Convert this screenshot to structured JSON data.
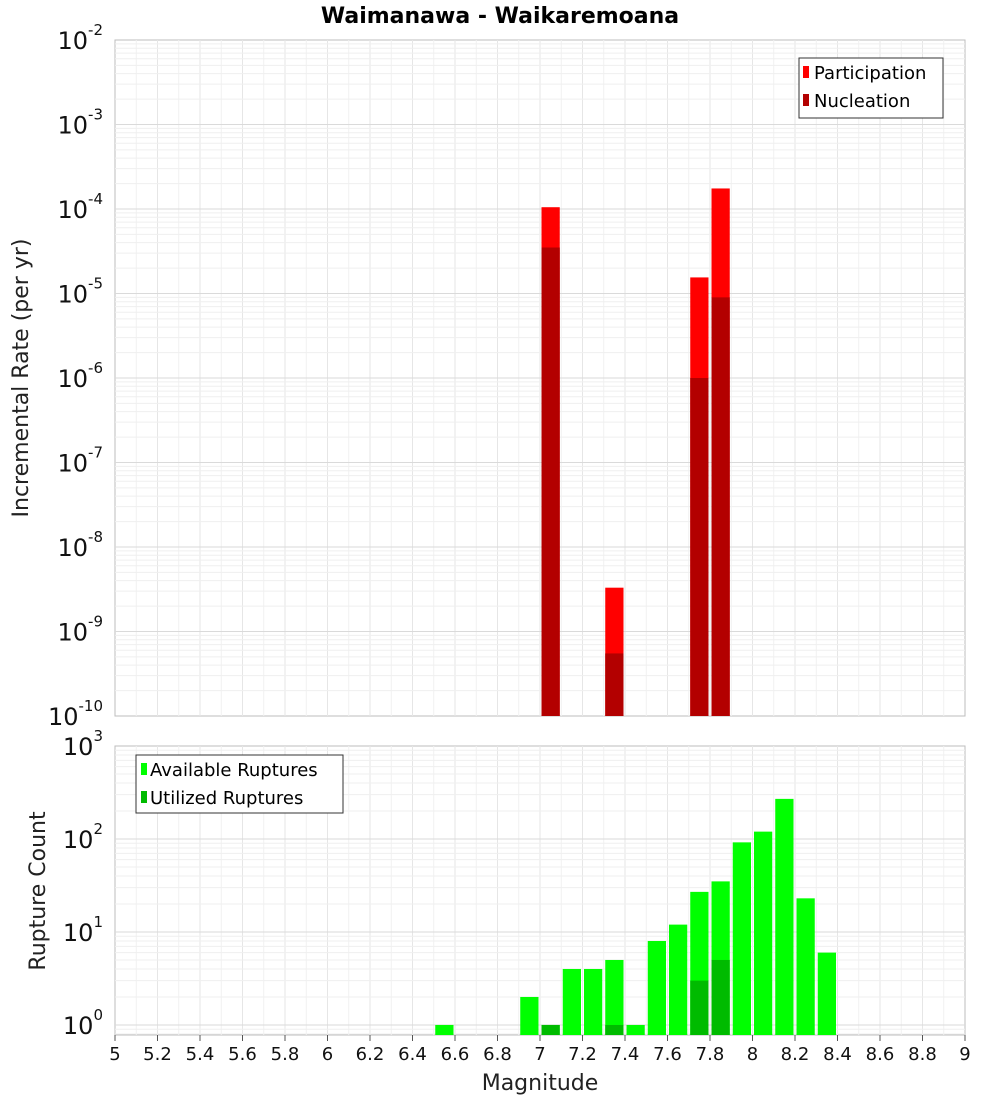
{
  "chart_data": [
    {
      "type": "bar",
      "title": "Waimanawa - Waikaremoana",
      "ylabel": "Incremental Rate (per yr)",
      "xlabel": "",
      "xlim": [
        5,
        9
      ],
      "ylim": [
        1e-10,
        0.01
      ],
      "yscale": "log",
      "yticks_base": "10",
      "yticks_exp": [
        "-10",
        "-9",
        "-8",
        "-7",
        "-6",
        "-5",
        "-4",
        "-3",
        "-2"
      ],
      "grid": true,
      "legend_position": "top-right",
      "bin_width": 0.1,
      "series": [
        {
          "name": "Participation",
          "color": "#ff0000",
          "x": [
            7.05,
            7.35,
            7.75,
            7.85
          ],
          "values": [
            0.000105,
            3.3e-09,
            1.55e-05,
            0.000175
          ]
        },
        {
          "name": "Nucleation",
          "color": "#b30000",
          "x": [
            7.05,
            7.35,
            7.75,
            7.85
          ],
          "values": [
            3.5e-05,
            5.5e-10,
            1e-06,
            9e-06
          ]
        }
      ]
    },
    {
      "type": "bar",
      "ylabel": "Rupture Count",
      "xlabel": "Magnitude",
      "xlim": [
        5,
        9
      ],
      "ylim": [
        0.78,
        1000
      ],
      "yscale": "log",
      "yticks_base": "10",
      "yticks_exp": [
        "0",
        "1",
        "2",
        "3"
      ],
      "xticks": [
        "5",
        "5.2",
        "5.4",
        "5.6",
        "5.8",
        "6",
        "6.2",
        "6.4",
        "6.6",
        "6.8",
        "7",
        "7.2",
        "7.4",
        "7.6",
        "7.8",
        "8",
        "8.2",
        "8.4",
        "8.6",
        "8.8",
        "9"
      ],
      "grid": true,
      "legend_position": "top-left",
      "bin_width": 0.1,
      "series": [
        {
          "name": "Available Ruptures",
          "color": "#00ff00",
          "x": [
            6.55,
            6.95,
            7.05,
            7.15,
            7.25,
            7.35,
            7.45,
            7.55,
            7.65,
            7.75,
            7.85,
            7.95,
            8.05,
            8.15,
            8.25,
            8.35
          ],
          "values": [
            1,
            2,
            1,
            4,
            4,
            5,
            1,
            8,
            12,
            27,
            35,
            92,
            120,
            270,
            23,
            6
          ]
        },
        {
          "name": "Utilized Ruptures",
          "color": "#00bb00",
          "x": [
            7.05,
            7.35,
            7.75,
            7.85
          ],
          "values": [
            1,
            1,
            3,
            5
          ]
        }
      ]
    }
  ]
}
